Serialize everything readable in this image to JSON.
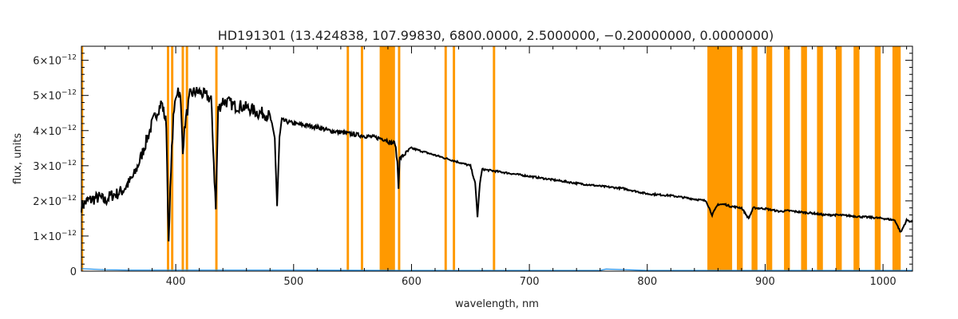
{
  "chart_data": {
    "type": "line",
    "title": "HD191301",
    "parameters": "(13.424838, 107.99830, 6800.0000, 2.5000000, −0.20000000, 0.0000000)",
    "xlabel": "wavelength, nm",
    "ylabel": "flux, units",
    "xlim": [
      320,
      1025
    ],
    "ylim": [
      0,
      6.4e-12
    ],
    "x_ticks": [
      400,
      500,
      600,
      700,
      800,
      900,
      1000
    ],
    "y_ticks": [
      {
        "value": 0,
        "base": "0",
        "exp": ""
      },
      {
        "value": 1e-12,
        "base": "1×10",
        "exp": "−12"
      },
      {
        "value": 2e-12,
        "base": "2×10",
        "exp": "−12"
      },
      {
        "value": 3e-12,
        "base": "3×10",
        "exp": "−12"
      },
      {
        "value": 4e-12,
        "base": "4×10",
        "exp": "−12"
      },
      {
        "value": 5e-12,
        "base": "5×10",
        "exp": "−12"
      },
      {
        "value": 6e-12,
        "base": "6×10",
        "exp": "−12"
      }
    ],
    "masked_bands_nm": [
      [
        320,
        321.5
      ],
      [
        392.5,
        394.5
      ],
      [
        396,
        398
      ],
      [
        405,
        407
      ],
      [
        408.5,
        410.5
      ],
      [
        433.5,
        435.5
      ],
      [
        545,
        547
      ],
      [
        557,
        559
      ],
      [
        573,
        586
      ],
      [
        588.5,
        590.5
      ],
      [
        628,
        630
      ],
      [
        635,
        637
      ],
      [
        669,
        671
      ],
      [
        851,
        872
      ],
      [
        876,
        881
      ],
      [
        888.5,
        893.5
      ],
      [
        901,
        906
      ],
      [
        916,
        921
      ],
      [
        930.5,
        935.5
      ],
      [
        944,
        949
      ],
      [
        960,
        965
      ],
      [
        975,
        980
      ],
      [
        993,
        998
      ],
      [
        1008,
        1015
      ]
    ],
    "series": [
      {
        "color": "#000000",
        "x": [
          320,
          325,
          330,
          335,
          340,
          345,
          350,
          355,
          360,
          365,
          370,
          375,
          380,
          385,
          388,
          392,
          394,
          396,
          398,
          400,
          402,
          404,
          406,
          408,
          410,
          412,
          416,
          420,
          425,
          430,
          434,
          436,
          440,
          445,
          450,
          455,
          460,
          465,
          470,
          475,
          480,
          484,
          486,
          488,
          490,
          495,
          500,
          510,
          520,
          530,
          540,
          550,
          560,
          570,
          578,
          582,
          586,
          588,
          589,
          590,
          600,
          610,
          620,
          630,
          640,
          650,
          654,
          656,
          658,
          660,
          670,
          680,
          700,
          720,
          740,
          760,
          780,
          800,
          820,
          840,
          850,
          855,
          860,
          866,
          870,
          880,
          886,
          890,
          900,
          912,
          920,
          930,
          940,
          950,
          960,
          970,
          980,
          990,
          1000,
          1010,
          1015,
          1020,
          1025
        ],
        "values": [
          1.85e-12,
          2e-12,
          2.05e-12,
          2.1e-12,
          2e-12,
          2.15e-12,
          2.2e-12,
          2.3e-12,
          2.5e-12,
          2.75e-12,
          3.2e-12,
          3.7e-12,
          4.2e-12,
          4.6e-12,
          4.8e-12,
          4.2e-12,
          7e-13,
          3e-12,
          4.3e-12,
          5e-12,
          5.2e-12,
          4.9e-12,
          3.5e-12,
          4.2e-12,
          4.6e-12,
          5e-12,
          5.1e-12,
          5.1e-12,
          5e-12,
          4.9e-12,
          1.75e-12,
          4.6e-12,
          4.85e-12,
          4.8e-12,
          4.7e-12,
          4.7e-12,
          4.65e-12,
          4.6e-12,
          4.5e-12,
          4.5e-12,
          4.4e-12,
          3.8e-12,
          1.85e-12,
          3.8e-12,
          4.3e-12,
          4.25e-12,
          4.2e-12,
          4.15e-12,
          4.1e-12,
          4e-12,
          3.95e-12,
          3.9e-12,
          3.85e-12,
          3.8e-12,
          3.75e-12,
          3.65e-12,
          3.65e-12,
          3.1e-12,
          2.4e-12,
          3.2e-12,
          3.5e-12,
          3.4e-12,
          3.3e-12,
          3.2e-12,
          3.1e-12,
          3e-12,
          2.5e-12,
          1.55e-12,
          2.5e-12,
          2.9e-12,
          2.85e-12,
          2.8e-12,
          2.7e-12,
          2.6e-12,
          2.5e-12,
          2.42e-12,
          2.35e-12,
          2.2e-12,
          2.15e-12,
          2.05e-12,
          2e-12,
          1.6e-12,
          1.9e-12,
          1.9e-12,
          1.85e-12,
          1.8e-12,
          1.5e-12,
          1.8e-12,
          1.78e-12,
          1.7e-12,
          1.72e-12,
          1.68e-12,
          1.65e-12,
          1.6e-12,
          1.6e-12,
          1.58e-12,
          1.55e-12,
          1.53e-12,
          1.5e-12,
          1.45e-12,
          1.1e-12,
          1.45e-12,
          1.4e-12
        ]
      },
      {
        "color": "#1f8fe8",
        "x": [
          320,
          340,
          360,
          380,
          400,
          500,
          600,
          700,
          760,
          765,
          800,
          900,
          1000,
          1025
        ],
        "values": [
          7e-14,
          4e-14,
          3e-14,
          3e-14,
          3e-14,
          3e-14,
          2e-14,
          2e-14,
          2e-14,
          6e-14,
          2e-14,
          2e-14,
          2e-14,
          2e-14
        ]
      }
    ],
    "band_color": "#ff9900",
    "grid": false,
    "legend": "none"
  }
}
